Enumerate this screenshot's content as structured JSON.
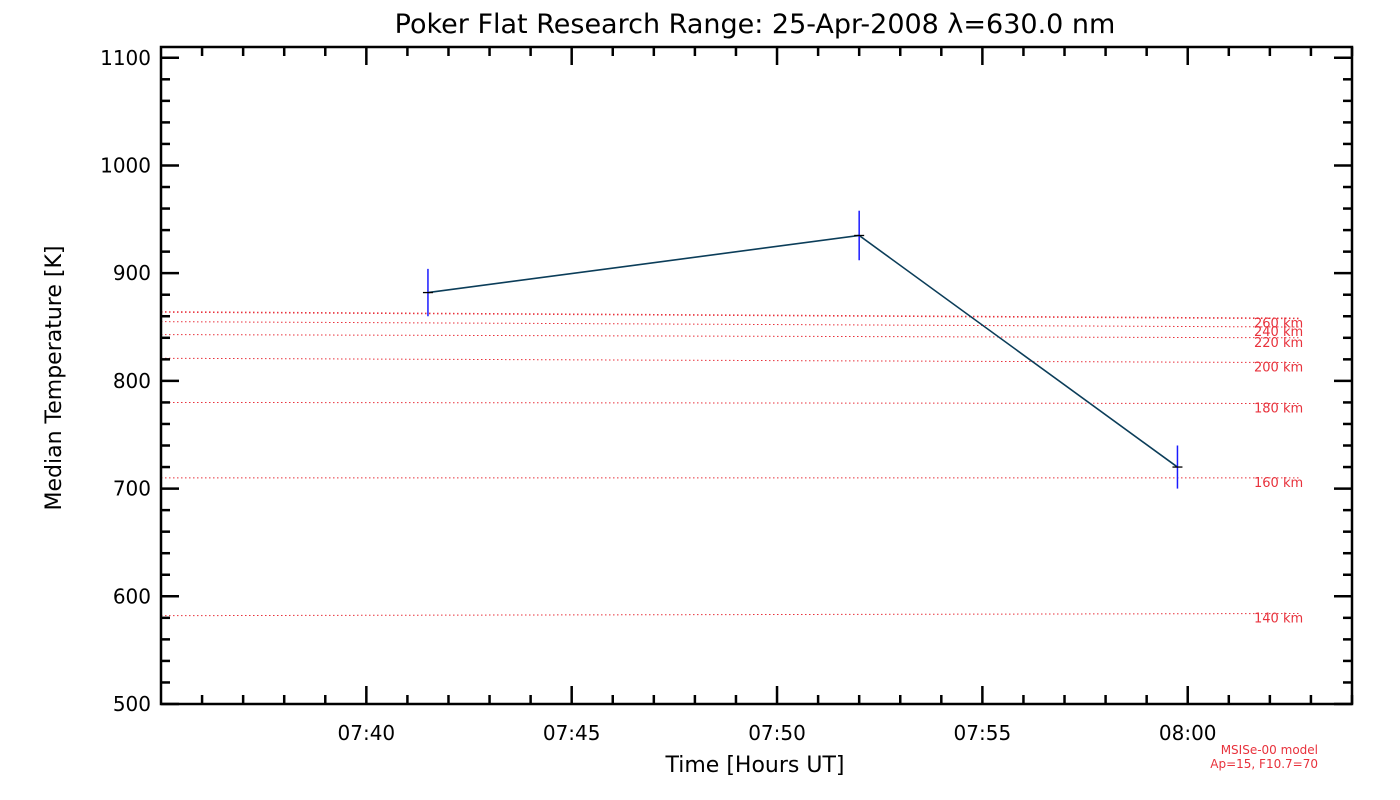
{
  "chart_data": {
    "type": "line",
    "title": "Poker Flat Research Range: 25-Apr-2008 λ=630.0 nm",
    "xlabel": "Time [Hours UT]",
    "ylabel": "Median Temperature [K]",
    "x_ticks": [
      "07:40",
      "07:45",
      "07:50",
      "07:55",
      "08:00"
    ],
    "x_tick_values": [
      "07:40",
      "07:45",
      "07:50",
      "07:55",
      "08:00"
    ],
    "xlim": [
      "07:35",
      "08:04"
    ],
    "y_ticks": [
      500,
      600,
      700,
      800,
      900,
      1000,
      1100
    ],
    "ylim": [
      500,
      1110
    ],
    "grid": false,
    "series": [
      {
        "x": [
          "07:41:30",
          "07:52:00",
          "07:59:45"
        ],
        "y": [
          882,
          935,
          720
        ],
        "y_err": [
          22,
          23,
          20
        ],
        "line_color": "#0b3d59",
        "errorbar_color": "#1a1aff"
      }
    ],
    "reference_lines": [
      {
        "label": "140 km",
        "y_start": 582,
        "y_end": 584
      },
      {
        "label": "160 km",
        "y_start": 710,
        "y_end": 710
      },
      {
        "label": "180 km",
        "y_start": 780,
        "y_end": 779
      },
      {
        "label": "200 km",
        "y_start": 821,
        "y_end": 817
      },
      {
        "label": "220 km",
        "y_start": 843,
        "y_end": 840
      },
      {
        "label": "240 km",
        "y_start": 855,
        "y_end": 850
      },
      {
        "label": "260 km",
        "y_start": 864,
        "y_end": 858
      }
    ],
    "reference_color": "#e8323c",
    "model_note": [
      "MSISe-00 model",
      "Ap=15, F10.7=70"
    ]
  }
}
